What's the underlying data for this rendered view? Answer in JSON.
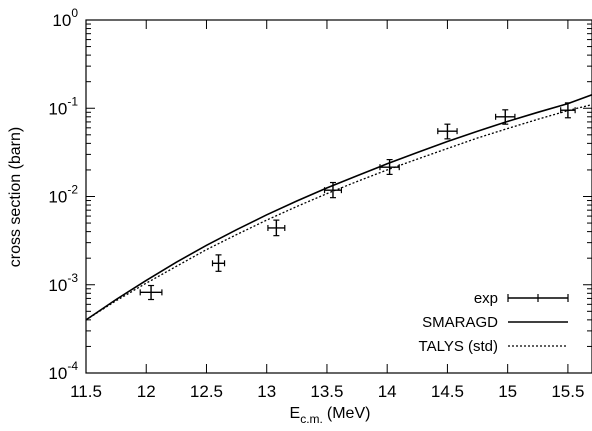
{
  "chart_data": {
    "type": "scatter",
    "xlabel_main": "E",
    "xlabel_sub": "c.m.",
    "xlabel_unit": "(MeV)",
    "ylabel": "cross section (barn)",
    "xlim": [
      11.5,
      15.7
    ],
    "ylim": [
      0.0001,
      1
    ],
    "y_scale": "log",
    "grid": false,
    "legend_position": "bottom-right",
    "x_ticks": [
      11.5,
      12,
      12.5,
      13,
      13.5,
      14,
      14.5,
      15,
      15.5
    ],
    "x_tick_labels": [
      "11.5",
      "12",
      "12.5",
      "13",
      "13.5",
      "14",
      "14.5",
      "15",
      "15.5"
    ],
    "y_ticks": [
      {
        "value": 1,
        "base": "10",
        "exp": "0"
      },
      {
        "value": 0.1,
        "base": "10",
        "exp": "-1"
      },
      {
        "value": 0.01,
        "base": "10",
        "exp": "-2"
      },
      {
        "value": 0.001,
        "base": "10",
        "exp": "-3"
      },
      {
        "value": 0.0001,
        "base": "10",
        "exp": "-4"
      }
    ],
    "series": [
      {
        "name": "exp",
        "kind": "errorbar",
        "color": "#000000",
        "points": [
          {
            "x": 12.04,
            "y": 0.00082,
            "xerr": 0.09,
            "ylo": 0.00068,
            "yhi": 0.00098
          },
          {
            "x": 12.6,
            "y": 0.00175,
            "xerr": 0.05,
            "ylo": 0.00142,
            "yhi": 0.00218
          },
          {
            "x": 13.08,
            "y": 0.0044,
            "xerr": 0.07,
            "ylo": 0.0036,
            "yhi": 0.0054
          },
          {
            "x": 13.55,
            "y": 0.0118,
            "xerr": 0.07,
            "ylo": 0.0097,
            "yhi": 0.0144
          },
          {
            "x": 14.02,
            "y": 0.0215,
            "xerr": 0.08,
            "ylo": 0.0178,
            "yhi": 0.0262
          },
          {
            "x": 14.5,
            "y": 0.055,
            "xerr": 0.08,
            "ylo": 0.045,
            "yhi": 0.066
          },
          {
            "x": 14.98,
            "y": 0.08,
            "xerr": 0.08,
            "ylo": 0.066,
            "yhi": 0.096
          },
          {
            "x": 15.5,
            "y": 0.095,
            "xerr": 0.06,
            "ylo": 0.078,
            "yhi": 0.115
          }
        ]
      },
      {
        "name": "SMARAGD",
        "kind": "line",
        "dash": "solid",
        "color": "#000000",
        "x": [
          11.5,
          11.75,
          12.0,
          12.25,
          12.5,
          12.75,
          13.0,
          13.25,
          13.5,
          13.75,
          14.0,
          14.25,
          14.5,
          14.75,
          15.0,
          15.25,
          15.5,
          15.7
        ],
        "y": [
          0.0004,
          0.00068,
          0.00112,
          0.0018,
          0.0028,
          0.0042,
          0.0062,
          0.0089,
          0.0125,
          0.0172,
          0.0235,
          0.0315,
          0.042,
          0.055,
          0.071,
          0.09,
          0.113,
          0.142
        ]
      },
      {
        "name": "TALYS (std)",
        "kind": "line",
        "dash": "dotted",
        "color": "#000000",
        "x": [
          11.5,
          11.75,
          12.0,
          12.25,
          12.5,
          12.75,
          13.0,
          13.25,
          13.5,
          13.75,
          14.0,
          14.25,
          14.5,
          14.75,
          15.0,
          15.25,
          15.5,
          15.7
        ],
        "y": [
          0.0004,
          0.00066,
          0.00104,
          0.00162,
          0.0025,
          0.0037,
          0.0054,
          0.0077,
          0.0108,
          0.0148,
          0.02,
          0.0265,
          0.035,
          0.046,
          0.059,
          0.075,
          0.094,
          0.11
        ]
      }
    ]
  }
}
